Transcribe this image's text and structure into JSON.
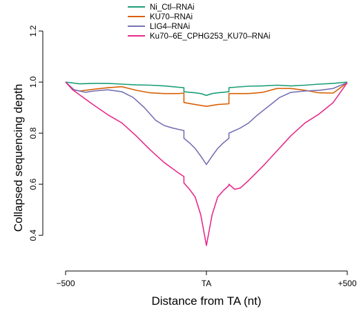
{
  "chart_data": {
    "type": "line",
    "xlabel": "Distance from TA (nt)",
    "ylabel": "Collapsed sequencing depth",
    "xlim": [
      -500,
      500
    ],
    "ylim": [
      0.36,
      1.2
    ],
    "x_ticks": [
      {
        "value": -500,
        "label": "−500"
      },
      {
        "value": 0,
        "label": "TA"
      },
      {
        "value": 500,
        "label": "+500"
      }
    ],
    "y_ticks": [
      {
        "value": 0.4,
        "label": "0.4"
      },
      {
        "value": 0.6,
        "label": "0.6"
      },
      {
        "value": 0.8,
        "label": "0.8"
      },
      {
        "value": 1.0,
        "label": "1.0"
      },
      {
        "value": 1.2,
        "label": "1.2"
      }
    ],
    "legend_position": "top",
    "grid": false,
    "series": [
      {
        "name": "Ni_Ctl–RNAi",
        "color": "#1a9e77",
        "points": [
          [
            -500,
            1.0
          ],
          [
            -450,
            0.993
          ],
          [
            -400,
            0.995
          ],
          [
            -350,
            0.995
          ],
          [
            -300,
            0.992
          ],
          [
            -250,
            0.989
          ],
          [
            -200,
            0.988
          ],
          [
            -150,
            0.985
          ],
          [
            -100,
            0.98
          ],
          [
            -80,
            0.978
          ],
          [
            -80,
            0.962
          ],
          [
            -40,
            0.958
          ],
          [
            -20,
            0.955
          ],
          [
            0,
            0.948
          ],
          [
            20,
            0.955
          ],
          [
            40,
            0.958
          ],
          [
            80,
            0.962
          ],
          [
            80,
            0.978
          ],
          [
            100,
            0.98
          ],
          [
            150,
            0.984
          ],
          [
            200,
            0.985
          ],
          [
            250,
            0.988
          ],
          [
            300,
            0.985
          ],
          [
            350,
            0.988
          ],
          [
            400,
            0.992
          ],
          [
            450,
            0.995
          ],
          [
            500,
            1.0
          ]
        ]
      },
      {
        "name": "KU70–RNAi",
        "color": "#d95f02",
        "points": [
          [
            -500,
            1.0
          ],
          [
            -470,
            0.97
          ],
          [
            -450,
            0.965
          ],
          [
            -400,
            0.972
          ],
          [
            -350,
            0.978
          ],
          [
            -300,
            0.982
          ],
          [
            -250,
            0.968
          ],
          [
            -200,
            0.958
          ],
          [
            -150,
            0.955
          ],
          [
            -100,
            0.955
          ],
          [
            -80,
            0.957
          ],
          [
            -80,
            0.92
          ],
          [
            -40,
            0.912
          ],
          [
            0,
            0.905
          ],
          [
            40,
            0.912
          ],
          [
            80,
            0.915
          ],
          [
            80,
            0.955
          ],
          [
            100,
            0.955
          ],
          [
            150,
            0.955
          ],
          [
            200,
            0.96
          ],
          [
            250,
            0.975
          ],
          [
            300,
            0.975
          ],
          [
            350,
            0.968
          ],
          [
            400,
            0.958
          ],
          [
            450,
            0.957
          ],
          [
            500,
            0.998
          ]
        ]
      },
      {
        "name": "LIG4–RNAi",
        "color": "#7570b3",
        "points": [
          [
            -500,
            1.0
          ],
          [
            -470,
            0.97
          ],
          [
            -430,
            0.96
          ],
          [
            -400,
            0.965
          ],
          [
            -350,
            0.97
          ],
          [
            -300,
            0.962
          ],
          [
            -260,
            0.94
          ],
          [
            -220,
            0.9
          ],
          [
            -180,
            0.85
          ],
          [
            -150,
            0.83
          ],
          [
            -120,
            0.82
          ],
          [
            -80,
            0.81
          ],
          [
            -80,
            0.78
          ],
          [
            -60,
            0.762
          ],
          [
            -40,
            0.74
          ],
          [
            -20,
            0.71
          ],
          [
            0,
            0.677
          ],
          [
            20,
            0.71
          ],
          [
            40,
            0.74
          ],
          [
            60,
            0.762
          ],
          [
            80,
            0.78
          ],
          [
            80,
            0.8
          ],
          [
            120,
            0.82
          ],
          [
            150,
            0.84
          ],
          [
            180,
            0.87
          ],
          [
            220,
            0.905
          ],
          [
            260,
            0.94
          ],
          [
            300,
            0.96
          ],
          [
            350,
            0.965
          ],
          [
            400,
            0.968
          ],
          [
            450,
            0.975
          ],
          [
            500,
            0.998
          ]
        ]
      },
      {
        "name": "Ku70–6E_CPHG253_KU70–RNAi",
        "color": "#e7298a",
        "points": [
          [
            -500,
            1.0
          ],
          [
            -475,
            0.97
          ],
          [
            -450,
            0.95
          ],
          [
            -400,
            0.91
          ],
          [
            -350,
            0.872
          ],
          [
            -300,
            0.84
          ],
          [
            -250,
            0.79
          ],
          [
            -200,
            0.735
          ],
          [
            -150,
            0.685
          ],
          [
            -100,
            0.645
          ],
          [
            -80,
            0.63
          ],
          [
            -80,
            0.605
          ],
          [
            -60,
            0.58
          ],
          [
            -40,
            0.55
          ],
          [
            -20,
            0.48
          ],
          [
            0,
            0.36
          ],
          [
            20,
            0.48
          ],
          [
            40,
            0.55
          ],
          [
            60,
            0.575
          ],
          [
            80,
            0.595
          ],
          [
            80,
            0.6
          ],
          [
            100,
            0.58
          ],
          [
            120,
            0.585
          ],
          [
            150,
            0.615
          ],
          [
            200,
            0.67
          ],
          [
            250,
            0.73
          ],
          [
            300,
            0.79
          ],
          [
            350,
            0.84
          ],
          [
            400,
            0.875
          ],
          [
            450,
            0.92
          ],
          [
            500,
            0.998
          ]
        ]
      }
    ]
  }
}
